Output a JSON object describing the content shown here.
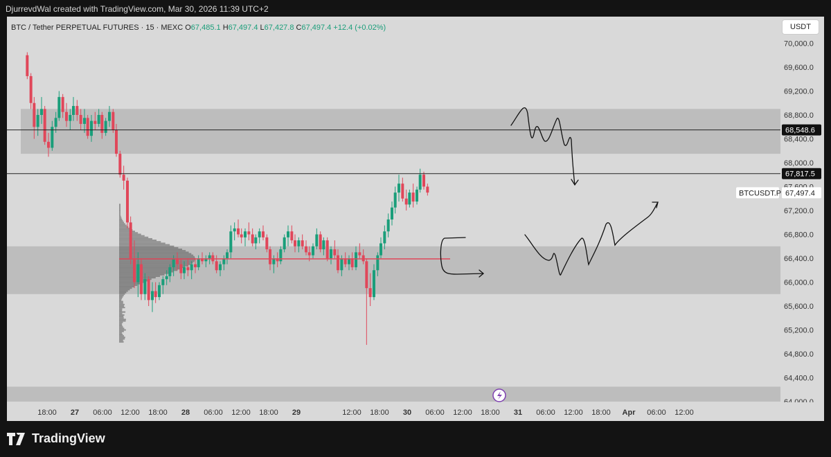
{
  "header": {
    "caption": "DjurrevdWal created with TradingView.com, Mar 30, 2026 11:39 UTC+2"
  },
  "legend": {
    "symbol": "BTC / Tether PERPETUAL FUTURES · 15 · MEXC",
    "open_label": "O",
    "open": "67,485.1",
    "high_label": "H",
    "high": "67,497.4",
    "low_label": "L",
    "low": "67,427.8",
    "close_label": "C",
    "close": "67,497.4",
    "change": "+12.4 (+0.02%)"
  },
  "currency_button": "USDT",
  "footer": {
    "brand": "TradingView"
  },
  "chart_data": {
    "type": "candlestick",
    "instrument": "BTCUSDT.P",
    "interval": "15",
    "y_axis": {
      "ylim": [
        64000,
        70400
      ],
      "ticks": [
        70000,
        69600,
        69200,
        68800,
        68400,
        68000,
        67600,
        67200,
        66800,
        66400,
        66000,
        65600,
        65200,
        64800,
        64400,
        64000
      ],
      "tick_labels": [
        "70,000.0",
        "69,600.0",
        "69,200.0",
        "68,800.0",
        "68,400.0",
        "68,000.0",
        "67,600.0",
        "67,200.0",
        "66,800.0",
        "66,400.0",
        "66,000.0",
        "65,600.0",
        "65,200.0",
        "64,800.0",
        "64,400.0",
        "64,000.0"
      ]
    },
    "x_axis": {
      "labels": [
        "18:00",
        "27",
        "06:00",
        "12:00",
        "18:00",
        "28",
        "06:00",
        "12:00",
        "18:00",
        "29",
        "12:00",
        "18:00",
        "30",
        "06:00",
        "12:00",
        "18:00",
        "31",
        "06:00",
        "12:00",
        "18:00",
        "Apr",
        "06:00",
        "12:00"
      ],
      "bold": [
        "27",
        "28",
        "29",
        "30",
        "31",
        "Apr"
      ],
      "hours": [
        -30,
        -24,
        -18,
        -12,
        -6,
        0,
        6,
        12,
        18,
        24,
        36,
        42,
        48,
        54,
        60,
        66,
        72,
        78,
        84,
        90,
        96,
        102,
        108
      ]
    },
    "price_lines": [
      {
        "price": 68548.6,
        "label": "68,548.6",
        "style": "dark"
      },
      {
        "price": 67817.5,
        "label": "67,817.5",
        "style": "dark"
      },
      {
        "price": 67497.4,
        "label": "67,497.4",
        "tag": "BTCUSDT.P",
        "style": "light"
      }
    ],
    "zones": [
      {
        "from": 68150,
        "to": 68900
      },
      {
        "from": 65800,
        "to": 66600
      },
      {
        "from": 64000,
        "to": 64250
      }
    ],
    "poc_price": 66390,
    "candles": [
      [
        -34.3,
        69800,
        69850,
        69400,
        69450
      ],
      [
        -33.5,
        69450,
        69500,
        68900,
        69000
      ],
      [
        -32.8,
        69000,
        69100,
        68400,
        68600
      ],
      [
        -32,
        68600,
        68900,
        68450,
        68800
      ],
      [
        -31.2,
        68800,
        69100,
        68650,
        68900
      ],
      [
        -30.5,
        68900,
        68950,
        68300,
        68350
      ],
      [
        -29.7,
        68350,
        68500,
        68100,
        68250
      ],
      [
        -28.9,
        68250,
        68700,
        68200,
        68600
      ],
      [
        -28.1,
        68600,
        68850,
        68500,
        68750
      ],
      [
        -27.4,
        68750,
        69200,
        68700,
        69100
      ],
      [
        -26.6,
        69100,
        69150,
        68750,
        68850
      ],
      [
        -25.8,
        68850,
        69000,
        68600,
        68700
      ],
      [
        -25,
        68700,
        68900,
        68550,
        68800
      ],
      [
        -24.3,
        68800,
        69100,
        68700,
        68950
      ],
      [
        -23.5,
        68950,
        69050,
        68700,
        68800
      ],
      [
        -22.7,
        68800,
        68900,
        68550,
        68650
      ],
      [
        -21.9,
        68650,
        68900,
        68500,
        68750
      ],
      [
        -21.2,
        68750,
        68800,
        68400,
        68450
      ],
      [
        -20.4,
        68450,
        68800,
        68350,
        68700
      ],
      [
        -19.6,
        68700,
        68850,
        68550,
        68650
      ],
      [
        -18.8,
        68650,
        68900,
        68600,
        68800
      ],
      [
        -18.1,
        68800,
        68850,
        68400,
        68500
      ],
      [
        -17.3,
        68500,
        68750,
        68450,
        68700
      ],
      [
        -16.5,
        68700,
        68950,
        68600,
        68850
      ],
      [
        -15.7,
        68850,
        68900,
        68500,
        68550
      ],
      [
        -15,
        68550,
        68650,
        68100,
        68150
      ],
      [
        -14.2,
        68150,
        68200,
        67750,
        67800
      ],
      [
        -13.4,
        67800,
        67950,
        67550,
        67700
      ],
      [
        -12.6,
        67700,
        67750,
        66900,
        67000
      ],
      [
        -11.9,
        67000,
        67100,
        66300,
        66400
      ],
      [
        -11.1,
        66400,
        66700,
        65900,
        66000
      ],
      [
        -10.3,
        66000,
        66500,
        65750,
        66300
      ],
      [
        -9.6,
        66300,
        66400,
        65700,
        65800
      ],
      [
        -8.8,
        65800,
        66150,
        65700,
        66050
      ],
      [
        -8,
        66050,
        66100,
        65600,
        65700
      ],
      [
        -7.2,
        65700,
        66000,
        65500,
        65850
      ],
      [
        -6.5,
        65850,
        66000,
        65650,
        65750
      ],
      [
        -5.7,
        65750,
        66000,
        65700,
        65950
      ],
      [
        -4.9,
        65950,
        66100,
        65800,
        66050
      ],
      [
        -4.1,
        66050,
        66200,
        65950,
        66100
      ],
      [
        -3.4,
        66100,
        66300,
        66000,
        66250
      ],
      [
        -2.6,
        66250,
        66450,
        66100,
        66400
      ],
      [
        -1.8,
        66400,
        66500,
        66200,
        66300
      ],
      [
        -1,
        66300,
        66400,
        66050,
        66150
      ],
      [
        -0.3,
        66150,
        66350,
        66050,
        66250
      ],
      [
        0.5,
        66250,
        66400,
        66100,
        66200
      ],
      [
        1.3,
        66200,
        66350,
        66050,
        66300
      ],
      [
        2.1,
        66300,
        66400,
        66150,
        66250
      ],
      [
        2.8,
        66250,
        66450,
        66200,
        66400
      ],
      [
        3.6,
        66400,
        66500,
        66300,
        66350
      ],
      [
        4.4,
        66350,
        66450,
        66250,
        66400
      ],
      [
        5.2,
        66400,
        66500,
        66300,
        66450
      ],
      [
        5.9,
        66450,
        66500,
        66300,
        66350
      ],
      [
        6.7,
        66350,
        66450,
        66150,
        66200
      ],
      [
        7.5,
        66200,
        66350,
        66100,
        66300
      ],
      [
        8.3,
        66300,
        66450,
        66200,
        66400
      ],
      [
        9,
        66400,
        66550,
        66300,
        66500
      ],
      [
        9.8,
        66500,
        66950,
        66400,
        66850
      ],
      [
        10.6,
        66850,
        67000,
        66700,
        66900
      ],
      [
        11.4,
        66900,
        67050,
        66750,
        66800
      ],
      [
        12.1,
        66800,
        66900,
        66650,
        66750
      ],
      [
        12.9,
        66750,
        66900,
        66600,
        66850
      ],
      [
        13.7,
        66850,
        67000,
        66700,
        66800
      ],
      [
        14.5,
        66800,
        66900,
        66600,
        66650
      ],
      [
        15.2,
        66650,
        66800,
        66550,
        66750
      ],
      [
        16,
        66750,
        66900,
        66650,
        66850
      ],
      [
        16.8,
        66850,
        66950,
        66700,
        66750
      ],
      [
        17.6,
        66750,
        66800,
        66500,
        66550
      ],
      [
        18.3,
        66550,
        66600,
        66200,
        66300
      ],
      [
        19.1,
        66300,
        66450,
        66150,
        66400
      ],
      [
        19.9,
        66400,
        66500,
        66250,
        66350
      ],
      [
        20.6,
        66350,
        66600,
        66300,
        66550
      ],
      [
        21.4,
        66550,
        66800,
        66500,
        66750
      ],
      [
        22.2,
        66750,
        66950,
        66600,
        66850
      ],
      [
        23,
        66850,
        66950,
        66650,
        66700
      ],
      [
        23.7,
        66700,
        66800,
        66500,
        66600
      ],
      [
        24.5,
        66600,
        66750,
        66500,
        66700
      ],
      [
        25.3,
        66700,
        66800,
        66550,
        66600
      ],
      [
        26.1,
        66600,
        66700,
        66450,
        66500
      ],
      [
        26.8,
        66500,
        66600,
        66350,
        66450
      ],
      [
        27.6,
        66450,
        66650,
        66400,
        66600
      ],
      [
        28.4,
        66600,
        66900,
        66550,
        66800
      ],
      [
        29.2,
        66800,
        66850,
        66500,
        66550
      ],
      [
        29.9,
        66550,
        66750,
        66450,
        66700
      ],
      [
        30.7,
        66700,
        66750,
        66350,
        66400
      ],
      [
        31.5,
        66400,
        66600,
        66300,
        66550
      ],
      [
        32.3,
        66550,
        66700,
        66400,
        66450
      ],
      [
        33,
        66450,
        66550,
        66150,
        66200
      ],
      [
        33.8,
        66200,
        66450,
        66100,
        66400
      ],
      [
        34.6,
        66400,
        66500,
        66250,
        66300
      ],
      [
        35.4,
        66300,
        66450,
        66200,
        66400
      ],
      [
        36.1,
        66400,
        66500,
        66200,
        66250
      ],
      [
        36.9,
        66250,
        66600,
        66200,
        66500
      ],
      [
        37.7,
        66500,
        66650,
        66400,
        66450
      ],
      [
        38.5,
        66450,
        66550,
        66300,
        66350
      ],
      [
        39.2,
        66350,
        66400,
        64950,
        65900
      ],
      [
        40,
        65900,
        66150,
        65600,
        65750
      ],
      [
        40.8,
        65750,
        66300,
        65700,
        66200
      ],
      [
        41.6,
        66200,
        66500,
        66100,
        66450
      ],
      [
        42.3,
        66450,
        66750,
        66400,
        66650
      ],
      [
        43.1,
        66650,
        66950,
        66550,
        66850
      ],
      [
        43.9,
        66850,
        67150,
        66750,
        67050
      ],
      [
        44.7,
        67050,
        67350,
        66950,
        67250
      ],
      [
        45.4,
        67250,
        67600,
        67150,
        67500
      ],
      [
        46.2,
        67500,
        67800,
        67350,
        67650
      ],
      [
        47,
        67650,
        67750,
        67350,
        67400
      ],
      [
        47.8,
        67400,
        67550,
        67200,
        67300
      ],
      [
        48.5,
        67300,
        67550,
        67250,
        67500
      ],
      [
        49.3,
        67500,
        67650,
        67250,
        67350
      ],
      [
        50.1,
        67350,
        67600,
        67300,
        67550
      ],
      [
        50.8,
        67550,
        67900,
        67500,
        67800
      ],
      [
        51.6,
        67800,
        67850,
        67550,
        67600
      ],
      [
        52.4,
        67600,
        67650,
        67450,
        67500
      ]
    ]
  }
}
